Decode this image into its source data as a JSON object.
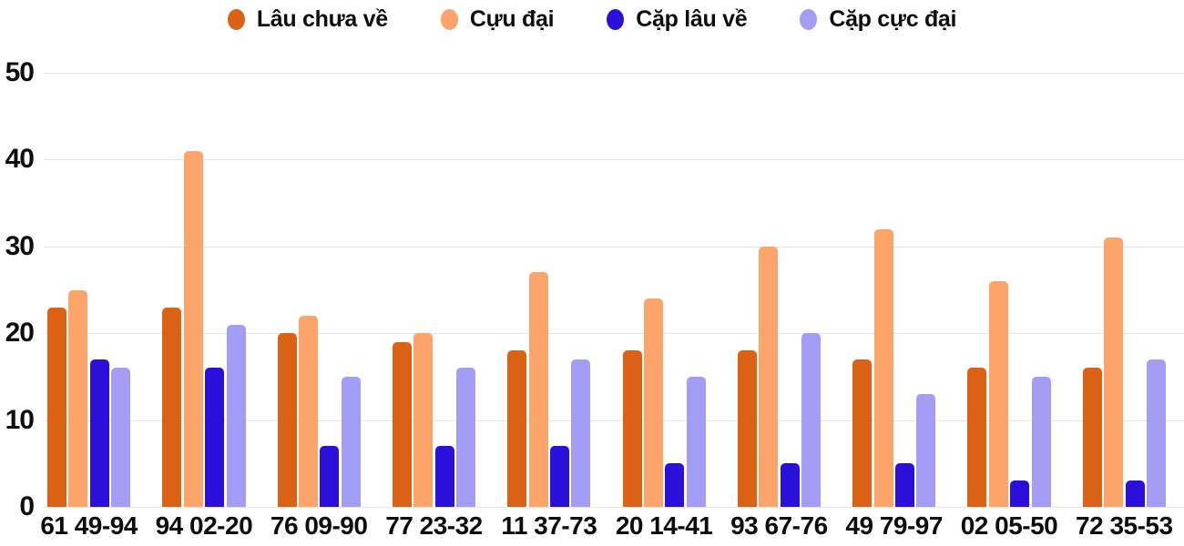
{
  "chart_data": {
    "type": "bar",
    "title": "",
    "categories": [
      "61 49-94",
      "94 02-20",
      "76 09-90",
      "77 23-32",
      "11 37-73",
      "20 14-41",
      "93 67-76",
      "49 79-97",
      "02 05-50",
      "72 35-53"
    ],
    "series": [
      {
        "name": "Lâu chưa về",
        "color": "#db6114",
        "values": [
          23,
          23,
          20,
          19,
          18,
          18,
          18,
          17,
          16,
          16
        ]
      },
      {
        "name": "Cựu đại",
        "color": "#fca469",
        "values": [
          25,
          41,
          22,
          20,
          27,
          24,
          30,
          32,
          26,
          31
        ]
      },
      {
        "name": "Cặp lâu về",
        "color": "#2b10dc",
        "values": [
          17,
          16,
          7,
          7,
          7,
          5,
          5,
          5,
          3,
          3
        ]
      },
      {
        "name": "Cặp cực đại",
        "color": "#a49df6",
        "values": [
          16,
          21,
          15,
          16,
          17,
          15,
          20,
          13,
          15,
          17
        ]
      }
    ],
    "xlabel": "",
    "ylabel": "",
    "ylim": [
      0,
      50
    ],
    "y_ticks": [
      0,
      10,
      20,
      30,
      40,
      50
    ],
    "grid": true,
    "legend_position": "top"
  },
  "colors": {
    "background": "#ffffff",
    "grid_line": "#e5e5e5",
    "axis_text": "#0d0d0d"
  }
}
